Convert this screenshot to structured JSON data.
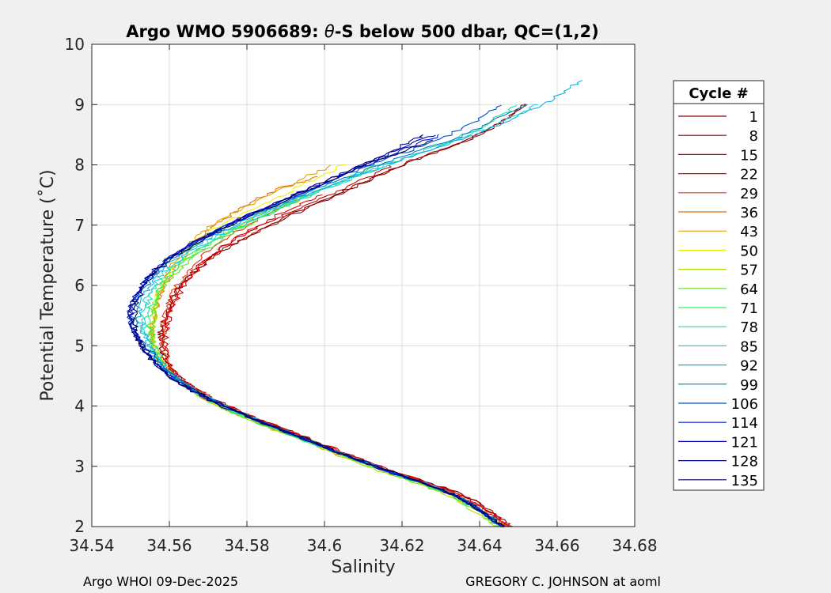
{
  "chart_data": {
    "type": "line",
    "title_prefix": "Argo WMO 5906689: ",
    "title_theta": "θ",
    "title_suffix": "-S below 500 dbar,  QC=(1,2)",
    "xlabel": "Salinity",
    "ylabel": "Potential Temperature (˚C)",
    "xlim": [
      34.54,
      34.68
    ],
    "ylim": [
      2,
      10
    ],
    "xticks": [
      "34.54",
      "34.56",
      "34.58",
      "34.6",
      "34.62",
      "34.64",
      "34.66",
      "34.68"
    ],
    "yticks": [
      "2",
      "3",
      "4",
      "5",
      "6",
      "7",
      "8",
      "9",
      "10"
    ],
    "grid": true,
    "legend_position": "outside-right",
    "legend_title": "Cycle #",
    "series": [
      {
        "name": "1",
        "color": "#800000",
        "curve": [
          [
            34.648,
            2.0
          ],
          [
            34.636,
            2.5
          ],
          [
            34.614,
            3.0
          ],
          [
            34.594,
            3.5
          ],
          [
            34.575,
            4.0
          ],
          [
            34.562,
            4.5
          ],
          [
            34.558,
            5.0
          ],
          [
            34.559,
            5.5
          ],
          [
            34.563,
            6.0
          ],
          [
            34.572,
            6.5
          ],
          [
            34.586,
            7.0
          ],
          [
            34.603,
            7.5
          ],
          [
            34.62,
            8.0
          ],
          [
            34.64,
            8.5
          ],
          [
            34.652,
            9.0
          ]
        ]
      },
      {
        "name": "8",
        "color": "#9a0000",
        "curve": [
          [
            34.648,
            2.0
          ],
          [
            34.636,
            2.5
          ],
          [
            34.614,
            3.0
          ],
          [
            34.594,
            3.5
          ],
          [
            34.575,
            4.0
          ],
          [
            34.562,
            4.5
          ],
          [
            34.558,
            5.0
          ],
          [
            34.559,
            5.5
          ],
          [
            34.563,
            6.0
          ],
          [
            34.572,
            6.5
          ],
          [
            34.586,
            7.0
          ],
          [
            34.603,
            7.5
          ],
          [
            34.62,
            8.0
          ],
          [
            34.64,
            8.5
          ],
          [
            34.652,
            9.0
          ]
        ]
      },
      {
        "name": "15",
        "color": "#c00000",
        "curve": [
          [
            34.648,
            2.0
          ],
          [
            34.636,
            2.5
          ],
          [
            34.614,
            3.0
          ],
          [
            34.594,
            3.5
          ],
          [
            34.575,
            4.0
          ],
          [
            34.562,
            4.5
          ],
          [
            34.559,
            5.0
          ],
          [
            34.56,
            5.5
          ],
          [
            34.563,
            6.0
          ],
          [
            34.571,
            6.5
          ],
          [
            34.584,
            7.0
          ],
          [
            34.601,
            7.5
          ],
          [
            34.618,
            8.0
          ]
        ]
      },
      {
        "name": "22",
        "color": "#e00000",
        "curve": [
          [
            34.647,
            2.0
          ],
          [
            34.635,
            2.5
          ],
          [
            34.614,
            3.0
          ],
          [
            34.594,
            3.5
          ],
          [
            34.575,
            4.0
          ],
          [
            34.562,
            4.5
          ],
          [
            34.559,
            5.0
          ],
          [
            34.56,
            5.5
          ],
          [
            34.564,
            6.0
          ],
          [
            34.571,
            6.5
          ],
          [
            34.583,
            7.0
          ],
          [
            34.599,
            7.5
          ]
        ]
      },
      {
        "name": "29",
        "color": "#e83010",
        "curve": [
          [
            34.647,
            2.0
          ],
          [
            34.635,
            2.5
          ],
          [
            34.613,
            3.0
          ],
          [
            34.593,
            3.5
          ],
          [
            34.575,
            4.0
          ],
          [
            34.562,
            4.5
          ],
          [
            34.558,
            5.0
          ],
          [
            34.559,
            5.5
          ],
          [
            34.562,
            6.0
          ],
          [
            34.569,
            6.5
          ],
          [
            34.58,
            7.0
          ],
          [
            34.595,
            7.5
          ]
        ]
      },
      {
        "name": "36",
        "color": "#e07000",
        "curve": [
          [
            34.646,
            2.0
          ],
          [
            34.634,
            2.5
          ],
          [
            34.612,
            3.0
          ],
          [
            34.592,
            3.5
          ],
          [
            34.573,
            4.0
          ],
          [
            34.561,
            4.5
          ],
          [
            34.556,
            5.0
          ],
          [
            34.556,
            5.5
          ],
          [
            34.559,
            6.0
          ],
          [
            34.564,
            6.5
          ],
          [
            34.572,
            7.0
          ],
          [
            34.585,
            7.5
          ],
          [
            34.598,
            7.8
          ]
        ]
      },
      {
        "name": "43",
        "color": "#e8a000",
        "curve": [
          [
            34.646,
            2.0
          ],
          [
            34.634,
            2.5
          ],
          [
            34.612,
            3.0
          ],
          [
            34.592,
            3.5
          ],
          [
            34.573,
            4.0
          ],
          [
            34.561,
            4.5
          ],
          [
            34.556,
            5.0
          ],
          [
            34.556,
            5.5
          ],
          [
            34.558,
            6.0
          ],
          [
            34.563,
            6.5
          ],
          [
            34.571,
            7.0
          ],
          [
            34.586,
            7.5
          ],
          [
            34.602,
            8.0
          ]
        ]
      },
      {
        "name": "50",
        "color": "#f0f000",
        "curve": [
          [
            34.645,
            2.0
          ],
          [
            34.633,
            2.5
          ],
          [
            34.612,
            3.0
          ],
          [
            34.592,
            3.5
          ],
          [
            34.573,
            4.0
          ],
          [
            34.561,
            4.5
          ],
          [
            34.556,
            5.0
          ],
          [
            34.556,
            5.5
          ],
          [
            34.558,
            6.0
          ],
          [
            34.564,
            6.5
          ],
          [
            34.573,
            7.0
          ],
          [
            34.589,
            7.5
          ],
          [
            34.605,
            8.0
          ]
        ]
      },
      {
        "name": "57",
        "color": "#a8e000",
        "curve": [
          [
            34.644,
            2.0
          ],
          [
            34.632,
            2.5
          ],
          [
            34.611,
            3.0
          ],
          [
            34.591,
            3.5
          ],
          [
            34.573,
            4.0
          ],
          [
            34.561,
            4.5
          ],
          [
            34.556,
            5.0
          ],
          [
            34.556,
            5.5
          ],
          [
            34.558,
            6.0
          ],
          [
            34.566,
            6.5
          ],
          [
            34.578,
            7.0
          ],
          [
            34.595,
            7.5
          ]
        ]
      },
      {
        "name": "64",
        "color": "#60e020",
        "curve": [
          [
            34.645,
            2.0
          ],
          [
            34.633,
            2.5
          ],
          [
            34.612,
            3.0
          ],
          [
            34.592,
            3.5
          ],
          [
            34.573,
            4.0
          ],
          [
            34.561,
            4.5
          ],
          [
            34.556,
            5.0
          ],
          [
            34.556,
            5.5
          ],
          [
            34.559,
            6.0
          ],
          [
            34.567,
            6.5
          ],
          [
            34.58,
            7.0
          ],
          [
            34.596,
            7.5
          ]
        ]
      },
      {
        "name": "71",
        "color": "#30f060",
        "curve": [
          [
            34.645,
            2.0
          ],
          [
            34.633,
            2.5
          ],
          [
            34.612,
            3.0
          ],
          [
            34.592,
            3.5
          ],
          [
            34.573,
            4.0
          ],
          [
            34.561,
            4.5
          ],
          [
            34.556,
            5.0
          ],
          [
            34.555,
            5.5
          ],
          [
            34.558,
            6.0
          ],
          [
            34.566,
            6.5
          ],
          [
            34.579,
            7.0
          ],
          [
            34.596,
            7.5
          ],
          [
            34.614,
            8.0
          ]
        ]
      },
      {
        "name": "78",
        "color": "#20e0a0",
        "curve": [
          [
            34.646,
            2.0
          ],
          [
            34.634,
            2.5
          ],
          [
            34.613,
            3.0
          ],
          [
            34.593,
            3.5
          ],
          [
            34.574,
            4.0
          ],
          [
            34.561,
            4.5
          ],
          [
            34.555,
            5.0
          ],
          [
            34.554,
            5.5
          ],
          [
            34.557,
            6.0
          ],
          [
            34.565,
            6.5
          ],
          [
            34.579,
            7.0
          ],
          [
            34.597,
            7.5
          ],
          [
            34.616,
            8.0
          ],
          [
            34.636,
            8.5
          ],
          [
            34.65,
            9.0
          ]
        ]
      },
      {
        "name": "85",
        "color": "#20d0e0",
        "curve": [
          [
            34.646,
            2.0
          ],
          [
            34.634,
            2.5
          ],
          [
            34.613,
            3.0
          ],
          [
            34.593,
            3.5
          ],
          [
            34.574,
            4.0
          ],
          [
            34.561,
            4.5
          ],
          [
            34.555,
            5.0
          ],
          [
            34.553,
            5.5
          ],
          [
            34.556,
            6.0
          ],
          [
            34.564,
            6.5
          ],
          [
            34.578,
            7.0
          ],
          [
            34.596,
            7.5
          ],
          [
            34.616,
            8.0
          ],
          [
            34.638,
            8.5
          ],
          [
            34.655,
            9.0
          ]
        ]
      },
      {
        "name": "92",
        "color": "#10b0e0",
        "curve": [
          [
            34.646,
            2.0
          ],
          [
            34.634,
            2.5
          ],
          [
            34.613,
            3.0
          ],
          [
            34.593,
            3.5
          ],
          [
            34.574,
            4.0
          ],
          [
            34.561,
            4.5
          ],
          [
            34.555,
            5.0
          ],
          [
            34.552,
            5.5
          ],
          [
            34.555,
            6.0
          ],
          [
            34.563,
            6.5
          ],
          [
            34.577,
            7.0
          ],
          [
            34.595,
            7.5
          ],
          [
            34.616,
            8.0
          ],
          [
            34.639,
            8.5
          ],
          [
            34.656,
            9.0
          ],
          [
            34.666,
            9.4
          ]
        ]
      },
      {
        "name": "99",
        "color": "#0080c8",
        "curve": [
          [
            34.646,
            2.0
          ],
          [
            34.634,
            2.5
          ],
          [
            34.613,
            3.0
          ],
          [
            34.593,
            3.5
          ],
          [
            34.574,
            4.0
          ],
          [
            34.561,
            4.5
          ],
          [
            34.554,
            5.0
          ],
          [
            34.551,
            5.5
          ],
          [
            34.554,
            6.0
          ],
          [
            34.562,
            6.5
          ],
          [
            34.576,
            7.0
          ],
          [
            34.594,
            7.5
          ],
          [
            34.614,
            8.0
          ],
          [
            34.636,
            8.5
          ],
          [
            34.652,
            9.0
          ]
        ]
      },
      {
        "name": "106",
        "color": "#0050d0",
        "curve": [
          [
            34.646,
            2.0
          ],
          [
            34.634,
            2.5
          ],
          [
            34.613,
            3.0
          ],
          [
            34.593,
            3.5
          ],
          [
            34.574,
            4.0
          ],
          [
            34.561,
            4.5
          ],
          [
            34.554,
            5.0
          ],
          [
            34.55,
            5.5
          ],
          [
            34.553,
            6.0
          ],
          [
            34.561,
            6.5
          ],
          [
            34.575,
            7.0
          ],
          [
            34.593,
            7.5
          ],
          [
            34.612,
            8.0
          ],
          [
            34.632,
            8.5
          ],
          [
            34.646,
            9.0
          ]
        ]
      },
      {
        "name": "114",
        "color": "#0020e0",
        "curve": [
          [
            34.646,
            2.0
          ],
          [
            34.634,
            2.5
          ],
          [
            34.613,
            3.0
          ],
          [
            34.593,
            3.5
          ],
          [
            34.574,
            4.0
          ],
          [
            34.56,
            4.5
          ],
          [
            34.553,
            5.0
          ],
          [
            34.55,
            5.5
          ],
          [
            34.553,
            6.0
          ],
          [
            34.561,
            6.5
          ],
          [
            34.575,
            7.0
          ],
          [
            34.593,
            7.5
          ],
          [
            34.611,
            8.0
          ],
          [
            34.63,
            8.5
          ]
        ]
      },
      {
        "name": "121",
        "color": "#0000b0",
        "curve": [
          [
            34.646,
            2.0
          ],
          [
            34.634,
            2.5
          ],
          [
            34.613,
            3.0
          ],
          [
            34.593,
            3.5
          ],
          [
            34.574,
            4.0
          ],
          [
            34.56,
            4.5
          ],
          [
            34.553,
            5.0
          ],
          [
            34.55,
            5.5
          ],
          [
            34.553,
            6.0
          ],
          [
            34.561,
            6.5
          ],
          [
            34.575,
            7.0
          ],
          [
            34.592,
            7.5
          ],
          [
            34.61,
            8.0
          ],
          [
            34.628,
            8.5
          ]
        ]
      },
      {
        "name": "128",
        "color": "#000088",
        "curve": [
          [
            34.646,
            2.0
          ],
          [
            34.634,
            2.5
          ],
          [
            34.613,
            3.0
          ],
          [
            34.593,
            3.5
          ],
          [
            34.574,
            4.0
          ],
          [
            34.56,
            4.5
          ],
          [
            34.553,
            5.0
          ],
          [
            34.55,
            5.5
          ],
          [
            34.553,
            6.0
          ],
          [
            34.561,
            6.5
          ],
          [
            34.575,
            7.0
          ],
          [
            34.592,
            7.5
          ],
          [
            34.61,
            8.0
          ],
          [
            34.626,
            8.5
          ]
        ]
      },
      {
        "name": "135",
        "color": "#00005a",
        "curve": [
          [
            34.646,
            2.0
          ],
          [
            34.634,
            2.5
          ],
          [
            34.613,
            3.0
          ],
          [
            34.593,
            3.5
          ],
          [
            34.574,
            4.0
          ],
          [
            34.56,
            4.5
          ],
          [
            34.553,
            5.0
          ],
          [
            34.551,
            5.5
          ],
          [
            34.554,
            6.0
          ],
          [
            34.562,
            6.5
          ],
          [
            34.576,
            7.0
          ],
          [
            34.593,
            7.5
          ],
          [
            34.611,
            8.0
          ],
          [
            34.628,
            8.4
          ]
        ]
      }
    ],
    "footer_left": "Argo WHOI 09-Dec-2025",
    "footer_right": "GREGORY C. JOHNSON at aoml"
  }
}
